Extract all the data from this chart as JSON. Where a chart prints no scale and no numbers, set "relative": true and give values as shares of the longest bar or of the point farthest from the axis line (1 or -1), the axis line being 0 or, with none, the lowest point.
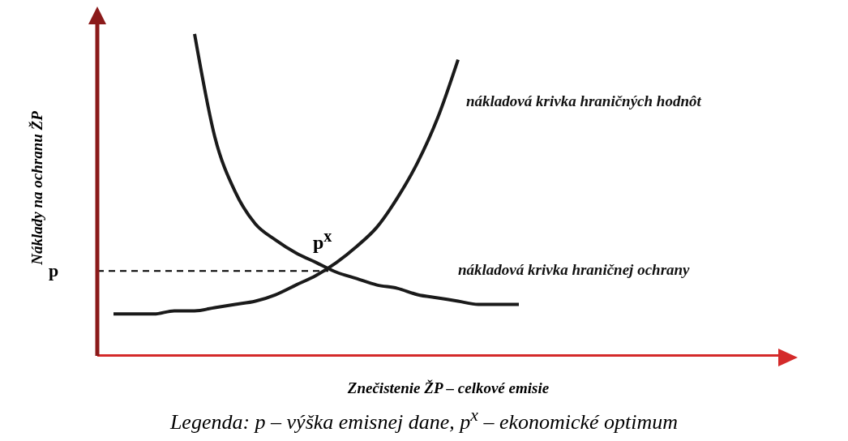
{
  "chart_data": {
    "type": "line",
    "relative": true,
    "ylabel": "Náklady na ochranu ŽP",
    "xlabel": "Znečistenie ŽP – celkové emisie",
    "marker": "none",
    "line_style": "solid",
    "categories": [
      null,
      null,
      null,
      null,
      null,
      null,
      null,
      null,
      null,
      null,
      null,
      null,
      null,
      null,
      null,
      null,
      null,
      null,
      null,
      null,
      null
    ],
    "series": [
      {
        "name": "nákladová krivka hraničnej ochrany",
        "color": "#1a1a1a",
        "values": [
          null,
          null,
          null,
          null,
          1.0,
          0.68,
          0.51,
          0.41,
          0.36,
          0.32,
          0.29,
          0.26,
          0.24,
          0.22,
          0.21,
          0.19,
          0.18,
          0.17,
          0.16,
          0.16,
          0.16
        ]
      },
      {
        "name": "nákladová krivka hraničných hodnôt",
        "color": "#1a1a1a",
        "values": [
          0.13,
          0.13,
          0.13,
          0.14,
          0.14,
          0.15,
          0.16,
          0.17,
          0.19,
          0.22,
          0.25,
          0.29,
          0.34,
          0.4,
          0.49,
          0.6,
          0.74,
          0.92,
          null,
          null,
          null
        ]
      }
    ],
    "ref_lines": [
      {
        "axis": "y",
        "value": 0.264,
        "label": "p",
        "color": "#000000",
        "line_style": "dashed"
      }
    ],
    "annotations": [
      "p$^{x}$",
      "Legenda: p – výška emisnej dane, p$^{x}$ – ekonomické optimum"
    ]
  }
}
